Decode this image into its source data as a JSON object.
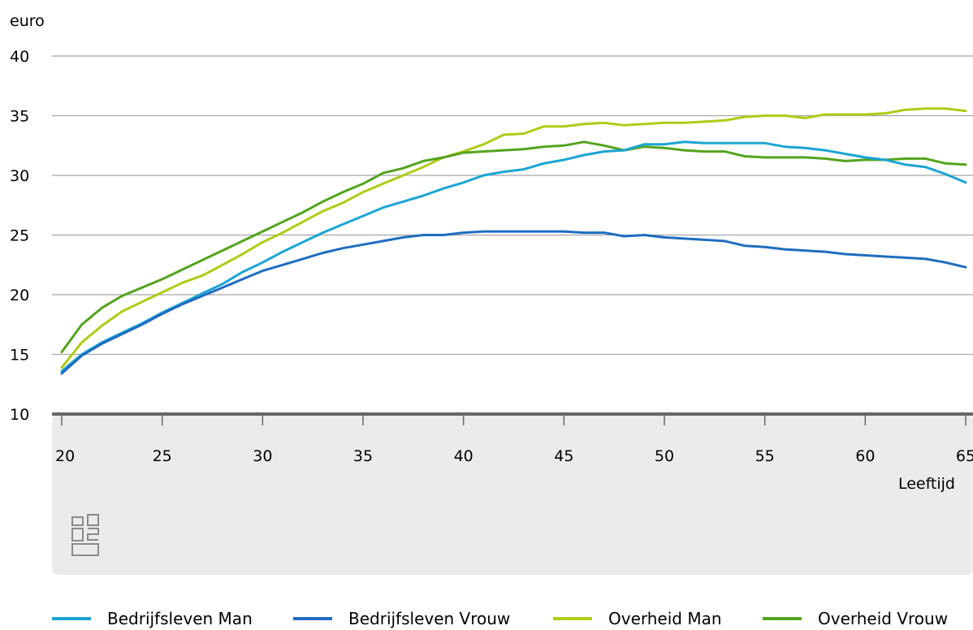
{
  "chart_data": {
    "type": "line",
    "ylabel": "euro",
    "xlabel": "Leeftijd",
    "xlim": [
      20,
      65
    ],
    "ylim": [
      10,
      40
    ],
    "x_ticks": [
      20,
      25,
      30,
      35,
      40,
      45,
      50,
      55,
      60,
      65
    ],
    "y_ticks": [
      10,
      15,
      20,
      25,
      30,
      35,
      40
    ],
    "grid": "horizontal",
    "legend_position": "bottom",
    "x": [
      20,
      21,
      22,
      23,
      24,
      25,
      26,
      27,
      28,
      29,
      30,
      31,
      32,
      33,
      34,
      35,
      36,
      37,
      38,
      39,
      40,
      41,
      42,
      43,
      44,
      45,
      46,
      47,
      48,
      49,
      50,
      51,
      52,
      53,
      54,
      55,
      56,
      57,
      58,
      59,
      60,
      61,
      62,
      63,
      64,
      65
    ],
    "series": [
      {
        "name": "Bedrijfsleven Man",
        "color": "#1ba5d2",
        "values": [
          13.6,
          15.0,
          16.0,
          16.8,
          17.6,
          18.5,
          19.3,
          20.1,
          20.9,
          21.9,
          22.7,
          23.6,
          24.4,
          25.2,
          25.9,
          26.6,
          27.3,
          27.8,
          28.3,
          28.9,
          29.4,
          30.0,
          30.3,
          30.5,
          31.0,
          31.3,
          31.7,
          32.0,
          32.1,
          32.6,
          32.6,
          32.8,
          32.7,
          32.7,
          32.7,
          32.7,
          32.4,
          32.3,
          32.1,
          31.8,
          31.5,
          31.3,
          30.9,
          30.7,
          30.1,
          29.4
        ]
      },
      {
        "name": "Bedrijfsleven Vrouw",
        "color": "#1f6cbf",
        "values": [
          13.4,
          14.9,
          15.9,
          16.7,
          17.5,
          18.4,
          19.2,
          19.9,
          20.6,
          21.3,
          22.0,
          22.5,
          23.0,
          23.5,
          23.9,
          24.2,
          24.5,
          24.8,
          25.0,
          25.0,
          25.2,
          25.3,
          25.3,
          25.3,
          25.3,
          25.3,
          25.2,
          25.2,
          24.9,
          25.0,
          24.8,
          24.7,
          24.6,
          24.5,
          24.1,
          24.0,
          23.8,
          23.7,
          23.6,
          23.4,
          23.3,
          23.2,
          23.1,
          23.0,
          22.7,
          22.3
        ]
      },
      {
        "name": "Overheid Man",
        "color": "#afcb16",
        "values": [
          13.9,
          16.0,
          17.4,
          18.6,
          19.4,
          20.2,
          21.0,
          21.6,
          22.5,
          23.4,
          24.4,
          25.2,
          26.1,
          27.0,
          27.7,
          28.6,
          29.3,
          30.0,
          30.7,
          31.5,
          32.0,
          32.6,
          33.4,
          33.5,
          34.1,
          34.1,
          34.3,
          34.4,
          34.2,
          34.3,
          34.4,
          34.4,
          34.5,
          34.6,
          34.9,
          35.0,
          35.0,
          34.8,
          35.1,
          35.1,
          35.1,
          35.2,
          35.5,
          35.6,
          35.6,
          35.4
        ]
      },
      {
        "name": "Overheid Vrouw",
        "color": "#53a31d",
        "values": [
          15.2,
          17.5,
          18.9,
          19.9,
          20.6,
          21.3,
          22.1,
          22.9,
          23.7,
          24.5,
          25.3,
          26.1,
          26.9,
          27.8,
          28.6,
          29.3,
          30.2,
          30.6,
          31.2,
          31.5,
          31.9,
          32.0,
          32.1,
          32.2,
          32.4,
          32.5,
          32.8,
          32.5,
          32.1,
          32.4,
          32.3,
          32.1,
          32.0,
          32.0,
          31.6,
          31.5,
          31.5,
          31.5,
          31.4,
          31.2,
          31.3,
          31.3,
          31.4,
          31.4,
          31.0,
          30.9
        ]
      }
    ]
  }
}
